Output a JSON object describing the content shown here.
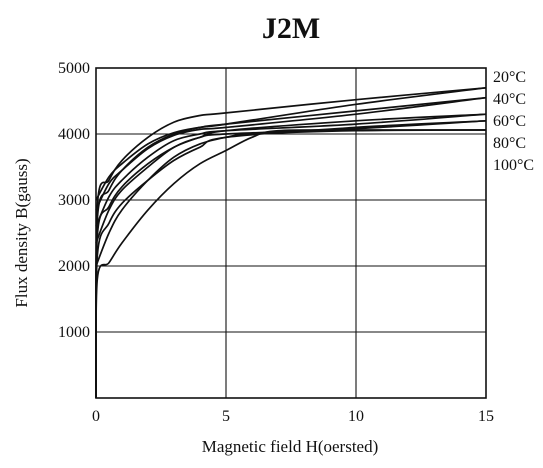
{
  "chart_data": {
    "type": "line",
    "title": "J2M",
    "xlabel": "Magnetic field H(oersted)",
    "ylabel": "Flux density B(gauss)",
    "xlim": [
      0,
      15
    ],
    "ylim": [
      0,
      5000
    ],
    "xticks": [
      0,
      5,
      10,
      15
    ],
    "yticks": [
      1000,
      2000,
      3000,
      4000,
      5000
    ],
    "grid": true,
    "legend": "right",
    "series": [
      {
        "name": "20°C",
        "increasing": [
          [
            0,
            0
          ],
          [
            0.05,
            2900
          ],
          [
            0.5,
            3300
          ],
          [
            1,
            3600
          ],
          [
            2,
            3950
          ],
          [
            3,
            4180
          ],
          [
            4,
            4280
          ],
          [
            5,
            4320
          ],
          [
            10,
            4520
          ],
          [
            15,
            4700
          ]
        ],
        "decreasing": [
          [
            15,
            4700
          ],
          [
            10,
            4450
          ],
          [
            5,
            4150
          ],
          [
            4,
            4100
          ],
          [
            3,
            4020
          ],
          [
            2,
            3850
          ],
          [
            1,
            3550
          ],
          [
            0.5,
            3350
          ],
          [
            0,
            3000
          ]
        ]
      },
      {
        "name": "40°C",
        "increasing": [
          [
            0,
            0
          ],
          [
            0.05,
            2700
          ],
          [
            0.5,
            3150
          ],
          [
            1,
            3450
          ],
          [
            2,
            3800
          ],
          [
            3,
            4000
          ],
          [
            4,
            4100
          ],
          [
            5,
            4150
          ],
          [
            10,
            4350
          ],
          [
            15,
            4550
          ]
        ],
        "decreasing": [
          [
            15,
            4550
          ],
          [
            10,
            4300
          ],
          [
            5,
            4100
          ],
          [
            4,
            4070
          ],
          [
            3,
            3980
          ],
          [
            2,
            3780
          ],
          [
            1,
            3450
          ],
          [
            0.5,
            3250
          ],
          [
            0,
            2850
          ]
        ]
      },
      {
        "name": "60°C",
        "increasing": [
          [
            0,
            0
          ],
          [
            0.05,
            2450
          ],
          [
            0.5,
            2900
          ],
          [
            1,
            3200
          ],
          [
            2,
            3550
          ],
          [
            3,
            3800
          ],
          [
            4,
            3950
          ],
          [
            5,
            4050
          ],
          [
            10,
            4200
          ],
          [
            15,
            4300
          ]
        ],
        "decreasing": [
          [
            15,
            4300
          ],
          [
            10,
            4150
          ],
          [
            5,
            4050
          ],
          [
            4,
            4000
          ],
          [
            3,
            3900
          ],
          [
            2,
            3650
          ],
          [
            1,
            3300
          ],
          [
            0.5,
            3050
          ],
          [
            0,
            2600
          ]
        ]
      },
      {
        "name": "80°C",
        "increasing": [
          [
            0,
            0
          ],
          [
            0.05,
            2150
          ],
          [
            0.5,
            2650
          ],
          [
            1,
            2950
          ],
          [
            2,
            3300
          ],
          [
            3,
            3600
          ],
          [
            4,
            3800
          ],
          [
            5,
            3950
          ],
          [
            10,
            4100
          ],
          [
            15,
            4200
          ]
        ],
        "decreasing": [
          [
            15,
            4200
          ],
          [
            10,
            4080
          ],
          [
            5,
            4000
          ],
          [
            4,
            3950
          ],
          [
            3,
            3800
          ],
          [
            2,
            3500
          ],
          [
            1,
            3150
          ],
          [
            0.5,
            2850
          ],
          [
            0,
            2350
          ]
        ]
      },
      {
        "name": "100°C",
        "increasing": [
          [
            0,
            0
          ],
          [
            0.05,
            1800
          ],
          [
            0.5,
            2050
          ],
          [
            1,
            2350
          ],
          [
            2,
            2850
          ],
          [
            3,
            3250
          ],
          [
            4,
            3550
          ],
          [
            5,
            3750
          ],
          [
            6,
            3950
          ],
          [
            7,
            4050
          ],
          [
            10,
            4060
          ],
          [
            15,
            4060
          ]
        ],
        "decreasing": [
          [
            15,
            4060
          ],
          [
            10,
            4050
          ],
          [
            6,
            4000
          ],
          [
            5,
            3950
          ],
          [
            4,
            3850
          ],
          [
            3,
            3650
          ],
          [
            2,
            3300
          ],
          [
            1,
            2850
          ],
          [
            0.5,
            2500
          ],
          [
            0,
            2000
          ]
        ]
      }
    ]
  }
}
